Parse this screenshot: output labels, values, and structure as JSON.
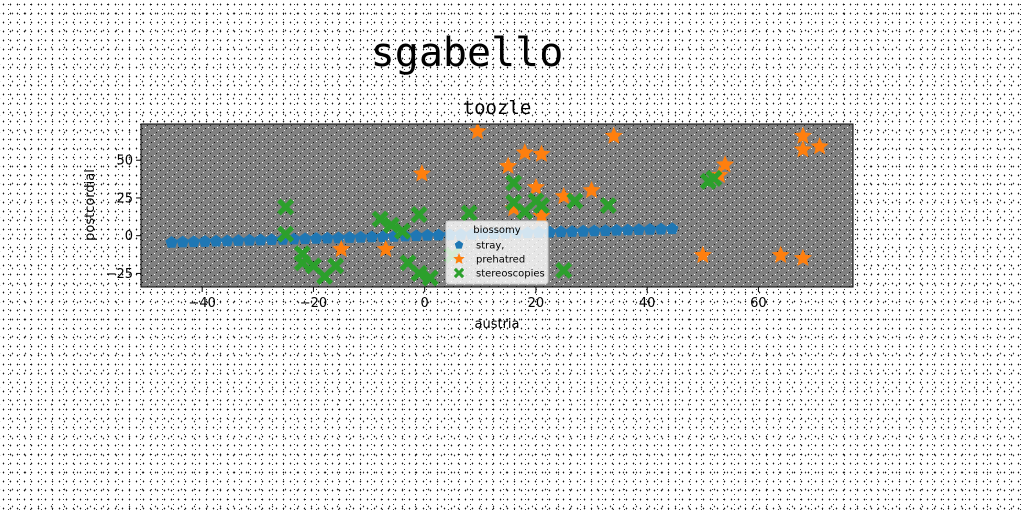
{
  "chart_data": {
    "type": "scatter",
    "title": "sgabello",
    "subtitle": "toozle",
    "xlabel": "austria",
    "ylabel": "postcordial",
    "xlim": [
      -51,
      77
    ],
    "ylim": [
      -34,
      74
    ],
    "xticks": [
      -40,
      -20,
      0,
      20,
      40,
      60
    ],
    "yticks": [
      -25,
      0,
      25,
      50
    ],
    "xtick_labels": [
      "−40",
      "−20",
      "0",
      "20",
      "40",
      "60"
    ],
    "ytick_labels": [
      "−25",
      "0",
      "25",
      "50"
    ],
    "grid": false,
    "plot_background": "#808080",
    "legend": {
      "title": "biossomy",
      "placement": "lower-center",
      "entries": [
        "stray,",
        "prehatred",
        "stereoscopies"
      ]
    },
    "series": [
      {
        "name": "stray,",
        "marker": "pentagon",
        "color": "#1f77b4",
        "x": [
          -45.5,
          -43.5,
          -41.5,
          -39.5,
          -37.5,
          -35.5,
          -33.5,
          -31.5,
          -29.5,
          -27.5,
          -25.5,
          -23.5,
          -21.5,
          -19.5,
          -17.5,
          -15.5,
          -13.5,
          -11.5,
          -9.5,
          -7.5,
          -5.5,
          -3.5,
          -1.5,
          0.5,
          2.5,
          4.5,
          6.5,
          8.5,
          10.5,
          12.5,
          14.5,
          16.5,
          18.5,
          20.5,
          22.5,
          24.5,
          26.5,
          28.5,
          30.5,
          32.5,
          34.5,
          36.5,
          38.5,
          40.5,
          42.5,
          44.5
        ],
        "y": [
          -4.5,
          -4.3,
          -4.1,
          -3.9,
          -3.7,
          -3.5,
          -3.3,
          -3.1,
          -2.9,
          -2.7,
          -2.5,
          -2.3,
          -2.1,
          -1.9,
          -1.7,
          -1.5,
          -1.3,
          -1.1,
          -0.9,
          -0.7,
          -0.5,
          -0.3,
          -0.1,
          0.1,
          0.3,
          0.5,
          0.7,
          0.9,
          1.1,
          1.3,
          1.5,
          1.7,
          1.9,
          2.1,
          2.3,
          2.5,
          2.7,
          2.9,
          3.1,
          3.3,
          3.5,
          3.7,
          3.9,
          4.1,
          4.3,
          4.5
        ]
      },
      {
        "name": "prehatred",
        "marker": "star",
        "color": "#ff7f0e",
        "x": [
          9.5,
          34,
          -0.5,
          18,
          21,
          15,
          20,
          25,
          30,
          16,
          -7,
          -15,
          50,
          54,
          53,
          68,
          68,
          71,
          64,
          68,
          21
        ],
        "y": [
          69,
          66,
          41,
          55,
          54,
          46,
          32,
          26,
          30,
          18,
          -9,
          -9,
          -13,
          47,
          40,
          66,
          57,
          59,
          -13,
          -15,
          13
        ]
      },
      {
        "name": "stereoscopies",
        "marker": "x",
        "color": "#2ca02c",
        "x": [
          -25,
          -25,
          -22,
          -22,
          -20,
          -18,
          -16,
          -8,
          -6,
          -4,
          -1,
          -3,
          -1,
          1,
          5,
          8,
          16,
          16,
          18,
          20,
          21,
          25,
          27,
          33,
          52,
          51
        ],
        "y": [
          19,
          1,
          -12,
          -18,
          -20,
          -27,
          -20,
          11,
          7,
          3,
          14,
          -18,
          -25,
          -28,
          -13,
          15,
          35,
          22,
          16,
          23,
          20,
          -23,
          23,
          20,
          38,
          36
        ]
      }
    ]
  }
}
